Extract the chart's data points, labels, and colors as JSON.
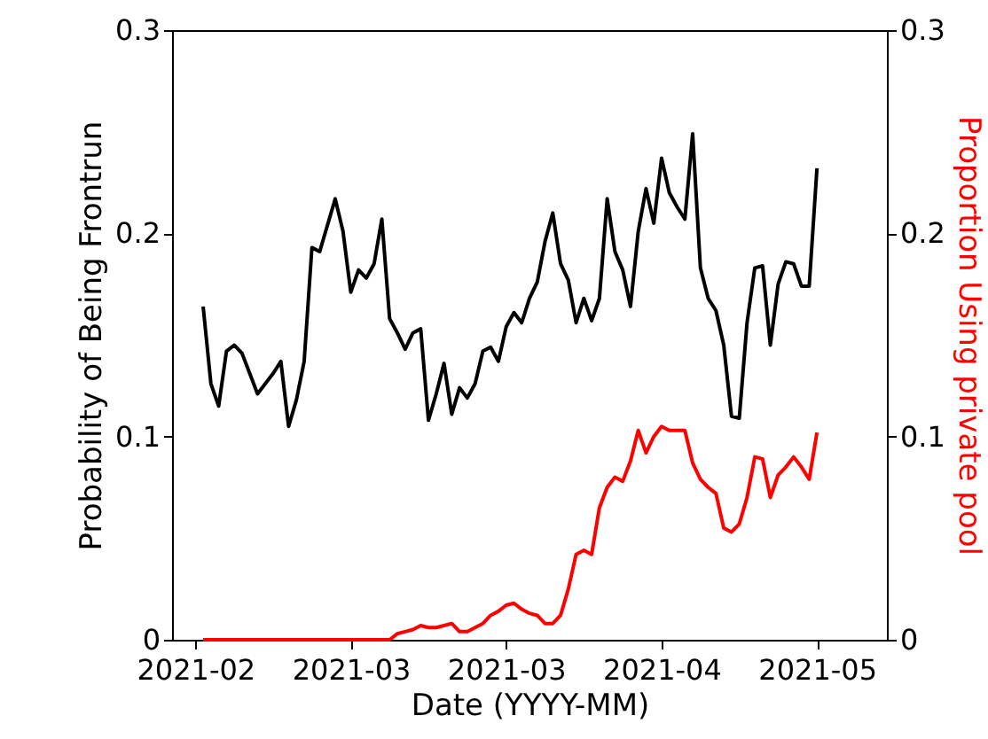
{
  "chart_data": {
    "type": "line",
    "xlabel": "Date (YYYY-MM)",
    "ylabel": "Probability of Being Frontrun",
    "y2label": "Proportion Using private pool",
    "x": [
      "2021-02-11",
      "2021-02-12",
      "2021-02-13",
      "2021-02-14",
      "2021-02-15",
      "2021-02-16",
      "2021-02-17",
      "2021-02-18",
      "2021-02-19",
      "2021-02-20",
      "2021-02-21",
      "2021-02-22",
      "2021-02-23",
      "2021-02-24",
      "2021-02-25",
      "2021-02-26",
      "2021-02-27",
      "2021-02-28",
      "2021-03-01",
      "2021-03-02",
      "2021-03-03",
      "2021-03-04",
      "2021-03-05",
      "2021-03-06",
      "2021-03-07",
      "2021-03-08",
      "2021-03-09",
      "2021-03-10",
      "2021-03-11",
      "2021-03-12",
      "2021-03-13",
      "2021-03-14",
      "2021-03-15",
      "2021-03-16",
      "2021-03-17",
      "2021-03-18",
      "2021-03-19",
      "2021-03-20",
      "2021-03-21",
      "2021-03-22",
      "2021-03-23",
      "2021-03-24",
      "2021-03-25",
      "2021-03-26",
      "2021-03-27",
      "2021-03-28",
      "2021-03-29",
      "2021-03-30",
      "2021-03-31",
      "2021-04-01",
      "2021-04-02",
      "2021-04-03",
      "2021-04-04",
      "2021-04-05",
      "2021-04-06",
      "2021-04-07",
      "2021-04-08",
      "2021-04-09",
      "2021-04-10",
      "2021-04-11",
      "2021-04-12",
      "2021-04-13",
      "2021-04-14",
      "2021-04-15",
      "2021-04-16",
      "2021-04-17",
      "2021-04-18",
      "2021-04-19",
      "2021-04-20",
      "2021-04-21",
      "2021-04-22",
      "2021-04-23",
      "2021-04-24",
      "2021-04-25",
      "2021-04-26",
      "2021-04-27",
      "2021-04-28",
      "2021-04-29",
      "2021-04-30",
      "2021-05-01"
    ],
    "series": [
      {
        "color": "#000000",
        "values": [
          0.164,
          0.126,
          0.115,
          0.142,
          0.145,
          0.141,
          0.131,
          0.121,
          0.126,
          0.131,
          0.137,
          0.105,
          0.118,
          0.137,
          0.193,
          0.191,
          0.204,
          0.217,
          0.201,
          0.171,
          0.182,
          0.178,
          0.185,
          0.207,
          0.158,
          0.151,
          0.143,
          0.151,
          0.153,
          0.108,
          0.121,
          0.136,
          0.111,
          0.124,
          0.119,
          0.126,
          0.142,
          0.144,
          0.137,
          0.154,
          0.161,
          0.156,
          0.168,
          0.176,
          0.196,
          0.21,
          0.185,
          0.177,
          0.156,
          0.168,
          0.157,
          0.168,
          0.217,
          0.191,
          0.182,
          0.164,
          0.201,
          0.222,
          0.205,
          0.237,
          0.22,
          0.213,
          0.207,
          0.249,
          0.183,
          0.168,
          0.162,
          0.145,
          0.11,
          0.109,
          0.156,
          0.183,
          0.184,
          0.145,
          0.175,
          0.186,
          0.185,
          0.174,
          0.174,
          0.232
        ]
      },
      {
        "color": "#ff0000",
        "axis": "y2",
        "values": [
          0,
          0,
          0,
          0,
          0,
          0,
          0,
          0,
          0,
          0,
          0,
          0,
          0,
          0,
          0,
          0,
          0,
          0,
          0,
          0,
          0,
          0,
          0,
          0,
          0,
          0.003,
          0.004,
          0.005,
          0.007,
          0.006,
          0.006,
          0.007,
          0.008,
          0.004,
          0.004,
          0.006,
          0.008,
          0.012,
          0.014,
          0.017,
          0.018,
          0.015,
          0.013,
          0.012,
          0.008,
          0.008,
          0.012,
          0.025,
          0.042,
          0.044,
          0.042,
          0.065,
          0.075,
          0.08,
          0.078,
          0.088,
          0.103,
          0.092,
          0.1,
          0.105,
          0.103,
          0.103,
          0.103,
          0.087,
          0.079,
          0.075,
          0.072,
          0.055,
          0.053,
          0.057,
          0.07,
          0.09,
          0.089,
          0.07,
          0.081,
          0.085,
          0.09,
          0.085,
          0.079,
          0.102
        ]
      }
    ],
    "xlim": [
      "2021-02-07",
      "2021-05-10"
    ],
    "xticks": [
      {
        "value": "2021-02-10",
        "label": "2021-02"
      },
      {
        "value": "2021-03-02",
        "label": "2021-03"
      },
      {
        "value": "2021-03-22",
        "label": "2021-03"
      },
      {
        "value": "2021-04-11",
        "label": "2021-04"
      },
      {
        "value": "2021-05-01",
        "label": "2021-05"
      }
    ],
    "ylim": [
      0,
      0.3
    ],
    "yticks": [
      0,
      0.1,
      0.2,
      0.3
    ],
    "y2lim": [
      0,
      0.3
    ],
    "y2ticks": [
      0,
      0.1,
      0.2,
      0.3
    ],
    "grid": false,
    "marker": "none",
    "line_style": "solid"
  }
}
